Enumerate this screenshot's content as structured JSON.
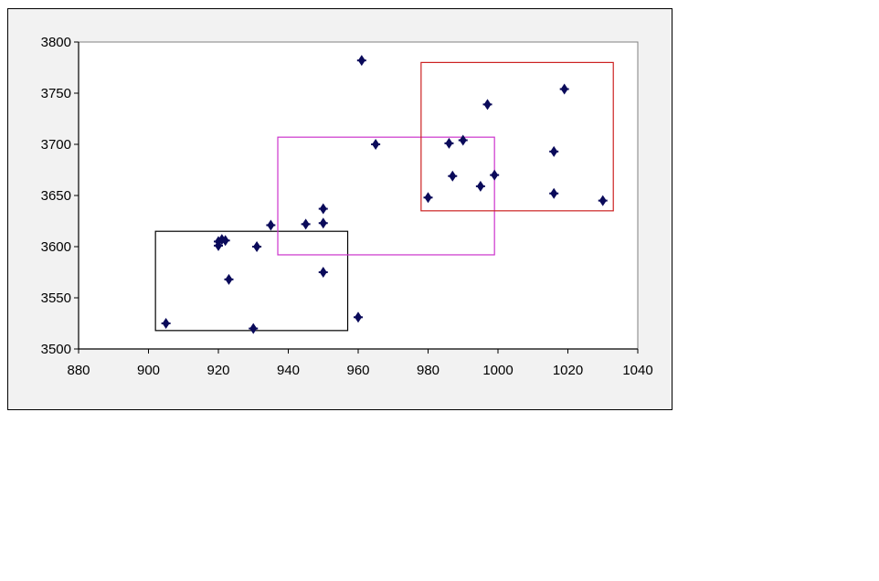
{
  "chart_data": {
    "type": "scatter",
    "title": "",
    "xlabel": "",
    "ylabel": "",
    "xlim": [
      880,
      1040
    ],
    "ylim": [
      3500,
      3800
    ],
    "x_ticks": [
      880,
      900,
      920,
      940,
      960,
      980,
      1000,
      1020,
      1040
    ],
    "y_ticks": [
      3500,
      3550,
      3600,
      3650,
      3700,
      3750,
      3800
    ],
    "grid": false,
    "legend": "none",
    "marker_color": "#0a0a5a",
    "series": [
      {
        "points": [
          {
            "x": 905,
            "y": 3525
          },
          {
            "x": 920,
            "y": 3605
          },
          {
            "x": 920,
            "y": 3601
          },
          {
            "x": 921,
            "y": 3607
          },
          {
            "x": 922,
            "y": 3606
          },
          {
            "x": 923,
            "y": 3568
          },
          {
            "x": 930,
            "y": 3520
          },
          {
            "x": 931,
            "y": 3600
          },
          {
            "x": 935,
            "y": 3621
          },
          {
            "x": 945,
            "y": 3622
          },
          {
            "x": 950,
            "y": 3637
          },
          {
            "x": 950,
            "y": 3623
          },
          {
            "x": 950,
            "y": 3575
          },
          {
            "x": 960,
            "y": 3531
          },
          {
            "x": 961,
            "y": 3782
          },
          {
            "x": 965,
            "y": 3700
          },
          {
            "x": 980,
            "y": 3648
          },
          {
            "x": 986,
            "y": 3701
          },
          {
            "x": 987,
            "y": 3669
          },
          {
            "x": 990,
            "y": 3704
          },
          {
            "x": 995,
            "y": 3659
          },
          {
            "x": 997,
            "y": 3739
          },
          {
            "x": 999,
            "y": 3670
          },
          {
            "x": 1016,
            "y": 3693
          },
          {
            "x": 1016,
            "y": 3652
          },
          {
            "x": 1019,
            "y": 3754
          },
          {
            "x": 1030,
            "y": 3645
          }
        ]
      }
    ],
    "boxes": [
      {
        "color": "#000000",
        "x_min": 902,
        "x_max": 957,
        "y_min": 3518,
        "y_max": 3615
      },
      {
        "color": "#cc33cc",
        "x_min": 937,
        "x_max": 999,
        "y_min": 3592,
        "y_max": 3707
      },
      {
        "color": "#cc2222",
        "x_min": 978,
        "x_max": 1033,
        "y_min": 3635,
        "y_max": 3780
      }
    ]
  }
}
